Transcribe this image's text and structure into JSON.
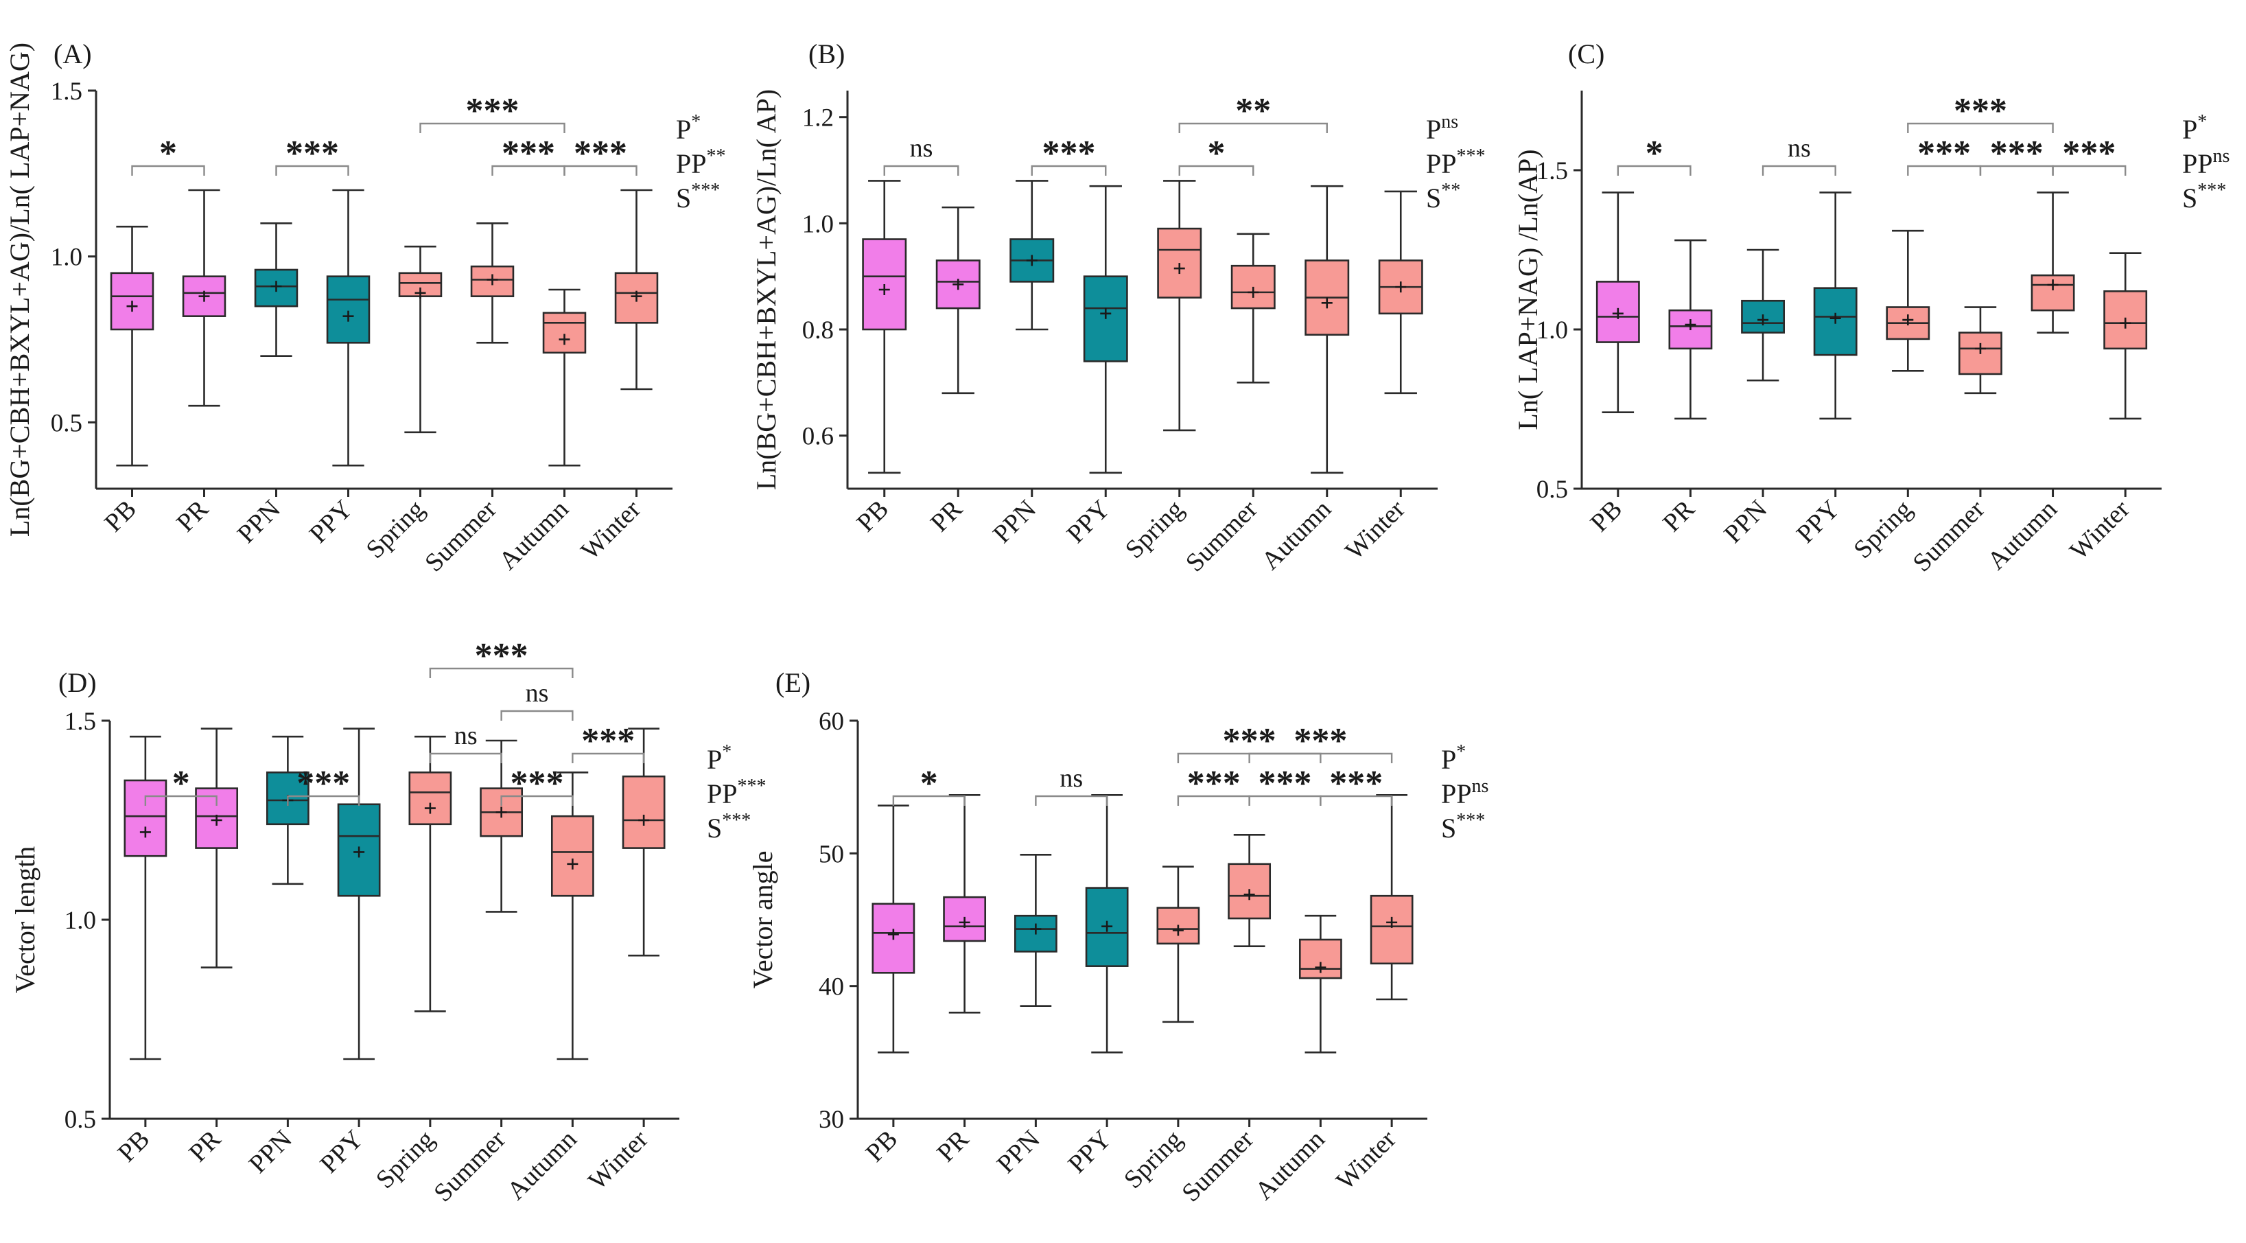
{
  "colors": {
    "pink": "#f17ee9",
    "teal": "#0e8e9a",
    "salmon": "#f79a95"
  },
  "chart_data": [
    {
      "type": "box",
      "panel": "(A)",
      "ylabel": "Ln(BG+CBH+BXYL+AG)/Ln( LAP+NAG)",
      "ylim": [
        0.3,
        1.5
      ],
      "yticks": [
        "0.5",
        "1.0",
        "1.5"
      ],
      "categories": [
        "PB",
        "PR",
        "PPN",
        "PPY",
        "Spring",
        "Summer",
        "Autumn",
        "Winter"
      ],
      "groups": [
        "pink",
        "pink",
        "teal",
        "teal",
        "salmon",
        "salmon",
        "salmon",
        "salmon"
      ],
      "boxes": [
        {
          "min": 0.37,
          "q1": 0.78,
          "median": 0.88,
          "q3": 0.95,
          "max": 1.09,
          "mean": 0.85
        },
        {
          "min": 0.55,
          "q1": 0.82,
          "median": 0.89,
          "q3": 0.94,
          "max": 1.2,
          "mean": 0.88
        },
        {
          "min": 0.7,
          "q1": 0.85,
          "median": 0.91,
          "q3": 0.96,
          "max": 1.1,
          "mean": 0.91
        },
        {
          "min": 0.37,
          "q1": 0.74,
          "median": 0.87,
          "q3": 0.94,
          "max": 1.2,
          "mean": 0.82
        },
        {
          "min": 0.47,
          "q1": 0.88,
          "median": 0.92,
          "q3": 0.95,
          "max": 1.03,
          "mean": 0.89
        },
        {
          "min": 0.74,
          "q1": 0.88,
          "median": 0.93,
          "q3": 0.97,
          "max": 1.1,
          "mean": 0.93
        },
        {
          "min": 0.37,
          "q1": 0.71,
          "median": 0.8,
          "q3": 0.83,
          "max": 0.9,
          "mean": 0.75
        },
        {
          "min": 0.6,
          "q1": 0.8,
          "median": 0.89,
          "q3": 0.95,
          "max": 1.2,
          "mean": 0.88
        }
      ],
      "brackets": [
        {
          "from": 0,
          "to": 1,
          "label": "*",
          "level": 0
        },
        {
          "from": 2,
          "to": 3,
          "label": "***",
          "level": 0
        },
        {
          "from": 5,
          "to": 6,
          "label": "***",
          "level": 0
        },
        {
          "from": 6,
          "to": 7,
          "label": "***",
          "level": 0
        },
        {
          "from": 4,
          "to": 6,
          "label": "***",
          "level": 1
        }
      ],
      "stats": [
        {
          "base": "P",
          "sup": "*"
        },
        {
          "base": "PP",
          "sup": "**"
        },
        {
          "base": "S",
          "sup": "***"
        }
      ]
    },
    {
      "type": "box",
      "panel": "(B)",
      "ylabel": "Ln(BG+CBH+BXYL+AG)/Ln( AP)",
      "ylim": [
        0.5,
        1.25
      ],
      "yticks": [
        "0.6",
        "0.8",
        "1.0",
        "1.2"
      ],
      "categories": [
        "PB",
        "PR",
        "PPN",
        "PPY",
        "Spring",
        "Summer",
        "Autumn",
        "Winter"
      ],
      "groups": [
        "pink",
        "pink",
        "teal",
        "teal",
        "salmon",
        "salmon",
        "salmon",
        "salmon"
      ],
      "boxes": [
        {
          "min": 0.53,
          "q1": 0.8,
          "median": 0.9,
          "q3": 0.97,
          "max": 1.08,
          "mean": 0.875
        },
        {
          "min": 0.68,
          "q1": 0.84,
          "median": 0.89,
          "q3": 0.93,
          "max": 1.03,
          "mean": 0.885
        },
        {
          "min": 0.8,
          "q1": 0.89,
          "median": 0.93,
          "q3": 0.97,
          "max": 1.08,
          "mean": 0.93
        },
        {
          "min": 0.53,
          "q1": 0.74,
          "median": 0.84,
          "q3": 0.9,
          "max": 1.07,
          "mean": 0.83
        },
        {
          "min": 0.61,
          "q1": 0.86,
          "median": 0.95,
          "q3": 0.99,
          "max": 1.08,
          "mean": 0.915
        },
        {
          "min": 0.7,
          "q1": 0.84,
          "median": 0.87,
          "q3": 0.92,
          "max": 0.98,
          "mean": 0.87
        },
        {
          "min": 0.53,
          "q1": 0.79,
          "median": 0.86,
          "q3": 0.93,
          "max": 1.07,
          "mean": 0.85
        },
        {
          "min": 0.68,
          "q1": 0.83,
          "median": 0.88,
          "q3": 0.93,
          "max": 1.06,
          "mean": 0.88
        }
      ],
      "brackets": [
        {
          "from": 0,
          "to": 1,
          "label": "ns",
          "level": 0
        },
        {
          "from": 2,
          "to": 3,
          "label": "***",
          "level": 0
        },
        {
          "from": 4,
          "to": 5,
          "label": "*",
          "level": 0
        },
        {
          "from": 4,
          "to": 6,
          "label": "**",
          "level": 1
        }
      ],
      "stats": [
        {
          "base": "P",
          "sup": "ns"
        },
        {
          "base": "PP",
          "sup": "***"
        },
        {
          "base": "S",
          "sup": "**"
        }
      ]
    },
    {
      "type": "box",
      "panel": "(C)",
      "ylabel": "Ln( LAP+NAG) /Ln(AP)",
      "ylim": [
        0.5,
        1.75
      ],
      "yticks": [
        "0.5",
        "1.0",
        "1.5"
      ],
      "categories": [
        "PB",
        "PR",
        "PPN",
        "PPY",
        "Spring",
        "Summer",
        "Autumn",
        "Winter"
      ],
      "groups": [
        "pink",
        "pink",
        "teal",
        "teal",
        "salmon",
        "salmon",
        "salmon",
        "salmon"
      ],
      "boxes": [
        {
          "min": 0.74,
          "q1": 0.96,
          "median": 1.04,
          "q3": 1.15,
          "max": 1.43,
          "mean": 1.05
        },
        {
          "min": 0.72,
          "q1": 0.94,
          "median": 1.01,
          "q3": 1.06,
          "max": 1.28,
          "mean": 1.015
        },
        {
          "min": 0.84,
          "q1": 0.99,
          "median": 1.02,
          "q3": 1.09,
          "max": 1.25,
          "mean": 1.03
        },
        {
          "min": 0.72,
          "q1": 0.92,
          "median": 1.04,
          "q3": 1.13,
          "max": 1.43,
          "mean": 1.035
        },
        {
          "min": 0.87,
          "q1": 0.97,
          "median": 1.02,
          "q3": 1.07,
          "max": 1.31,
          "mean": 1.03
        },
        {
          "min": 0.8,
          "q1": 0.86,
          "median": 0.94,
          "q3": 0.99,
          "max": 1.07,
          "mean": 0.94
        },
        {
          "min": 0.99,
          "q1": 1.06,
          "median": 1.14,
          "q3": 1.17,
          "max": 1.43,
          "mean": 1.14
        },
        {
          "min": 0.72,
          "q1": 0.94,
          "median": 1.02,
          "q3": 1.12,
          "max": 1.24,
          "mean": 1.02
        }
      ],
      "brackets": [
        {
          "from": 0,
          "to": 1,
          "label": "*",
          "level": 0
        },
        {
          "from": 2,
          "to": 3,
          "label": "ns",
          "level": 0
        },
        {
          "from": 4,
          "to": 5,
          "label": "***",
          "level": 0
        },
        {
          "from": 5,
          "to": 6,
          "label": "***",
          "level": 0
        },
        {
          "from": 6,
          "to": 7,
          "label": "***",
          "level": 0
        },
        {
          "from": 4,
          "to": 6,
          "label": "***",
          "level": 1
        }
      ],
      "stats": [
        {
          "base": "P",
          "sup": "*"
        },
        {
          "base": "PP",
          "sup": "ns"
        },
        {
          "base": "S",
          "sup": "***"
        }
      ]
    },
    {
      "type": "box",
      "panel": "(D)",
      "ylabel": "Vector length",
      "ylim": [
        0.5,
        1.5
      ],
      "yticks": [
        "0.5",
        "1.0",
        "1.5"
      ],
      "categories": [
        "PB",
        "PR",
        "PPN",
        "PPY",
        "Spring",
        "Summer",
        "Autumn",
        "Winter"
      ],
      "groups": [
        "pink",
        "pink",
        "teal",
        "teal",
        "salmon",
        "salmon",
        "salmon",
        "salmon"
      ],
      "boxes": [
        {
          "min": 0.65,
          "q1": 1.16,
          "median": 1.26,
          "q3": 1.35,
          "max": 1.46,
          "mean": 1.22
        },
        {
          "min": 0.88,
          "q1": 1.18,
          "median": 1.26,
          "q3": 1.33,
          "max": 1.48,
          "mean": 1.25
        },
        {
          "min": 1.09,
          "q1": 1.24,
          "median": 1.3,
          "q3": 1.37,
          "max": 1.46,
          "mean": 1.3
        },
        {
          "min": 0.65,
          "q1": 1.06,
          "median": 1.21,
          "q3": 1.29,
          "max": 1.48,
          "mean": 1.17
        },
        {
          "min": 0.77,
          "q1": 1.24,
          "median": 1.32,
          "q3": 1.37,
          "max": 1.46,
          "mean": 1.28
        },
        {
          "min": 1.02,
          "q1": 1.21,
          "median": 1.27,
          "q3": 1.33,
          "max": 1.45,
          "mean": 1.27
        },
        {
          "min": 0.65,
          "q1": 1.06,
          "median": 1.17,
          "q3": 1.26,
          "max": 1.37,
          "mean": 1.14
        },
        {
          "min": 0.91,
          "q1": 1.18,
          "median": 1.25,
          "q3": 1.36,
          "max": 1.48,
          "mean": 1.25
        }
      ],
      "brackets": [
        {
          "from": 0,
          "to": 1,
          "label": "*",
          "level": 0
        },
        {
          "from": 2,
          "to": 3,
          "label": "***",
          "level": 0
        },
        {
          "from": 5,
          "to": 6,
          "label": "***",
          "level": 0
        },
        {
          "from": 4,
          "to": 5,
          "label": "ns",
          "level": 1
        },
        {
          "from": 6,
          "to": 7,
          "label": "***",
          "level": 1
        },
        {
          "from": 5,
          "to": 6,
          "label": "ns",
          "level": 2
        },
        {
          "from": 4,
          "to": 6,
          "label": "***",
          "level": 3
        }
      ],
      "stats": [
        {
          "base": "P",
          "sup": "*"
        },
        {
          "base": "PP",
          "sup": "***"
        },
        {
          "base": "S",
          "sup": "***"
        }
      ]
    },
    {
      "type": "box",
      "panel": "(E)",
      "ylabel": "Vector angle",
      "ylim": [
        30,
        60
      ],
      "yticks": [
        "30",
        "40",
        "50",
        "60"
      ],
      "categories": [
        "PB",
        "PR",
        "PPN",
        "PPY",
        "Spring",
        "Summer",
        "Autumn",
        "Winter"
      ],
      "groups": [
        "pink",
        "pink",
        "teal",
        "teal",
        "salmon",
        "salmon",
        "salmon",
        "salmon"
      ],
      "boxes": [
        {
          "min": 35.0,
          "q1": 41.0,
          "median": 44.0,
          "q3": 46.2,
          "max": 53.6,
          "mean": 43.9
        },
        {
          "min": 38.0,
          "q1": 43.4,
          "median": 44.5,
          "q3": 46.7,
          "max": 54.4,
          "mean": 44.8
        },
        {
          "min": 38.5,
          "q1": 42.6,
          "median": 44.3,
          "q3": 45.3,
          "max": 49.9,
          "mean": 44.3
        },
        {
          "min": 35.0,
          "q1": 41.5,
          "median": 44.0,
          "q3": 47.4,
          "max": 54.4,
          "mean": 44.5
        },
        {
          "min": 37.3,
          "q1": 43.2,
          "median": 44.3,
          "q3": 45.9,
          "max": 49.0,
          "mean": 44.2
        },
        {
          "min": 43.0,
          "q1": 45.1,
          "median": 46.8,
          "q3": 49.2,
          "max": 51.4,
          "mean": 46.9
        },
        {
          "min": 35.0,
          "q1": 40.6,
          "median": 41.3,
          "q3": 43.5,
          "max": 45.3,
          "mean": 41.4
        },
        {
          "min": 39.0,
          "q1": 41.7,
          "median": 44.5,
          "q3": 46.8,
          "max": 54.4,
          "mean": 44.8
        }
      ],
      "brackets": [
        {
          "from": 0,
          "to": 1,
          "label": "*",
          "level": 0
        },
        {
          "from": 2,
          "to": 3,
          "label": "ns",
          "level": 0
        },
        {
          "from": 4,
          "to": 5,
          "label": "***",
          "level": 0
        },
        {
          "from": 5,
          "to": 6,
          "label": "***",
          "level": 0
        },
        {
          "from": 6,
          "to": 7,
          "label": "***",
          "level": 0
        },
        {
          "from": 4,
          "to": 6,
          "label": "***",
          "level": 1
        },
        {
          "from": 5,
          "to": 7,
          "label": "***",
          "level": 1
        }
      ],
      "stats": [
        {
          "base": "P",
          "sup": "*"
        },
        {
          "base": "PP",
          "sup": "ns"
        },
        {
          "base": "S",
          "sup": "***"
        }
      ]
    }
  ]
}
